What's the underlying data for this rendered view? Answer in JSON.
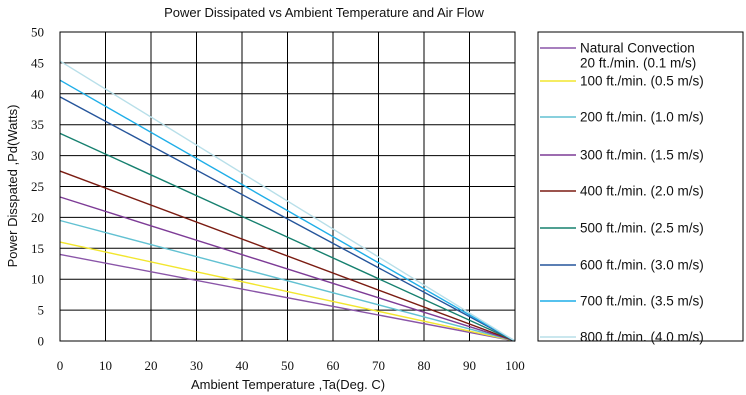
{
  "chart_data": {
    "type": "line",
    "title": "Power Dissipated vs Ambient Temperature and Air Flow",
    "xlabel": "Ambient Temperature ,Ta(Deg. C)",
    "ylabel": "Power Disspated ,Pd(Watts)",
    "xlim": [
      0,
      100
    ],
    "ylim": [
      0,
      50
    ],
    "x_ticks": [
      "0",
      "10",
      "20",
      "30",
      "40",
      "50",
      "60",
      "70",
      "80",
      "90",
      "100"
    ],
    "y_ticks": [
      "0",
      "5",
      "10",
      "15",
      "20",
      "25",
      "30",
      "35",
      "40",
      "45",
      "50"
    ],
    "grid": true,
    "legend_position": "right",
    "series": [
      {
        "name": "Natural Convection 20 ft./min. (0.1 m/s)",
        "label_lines": [
          "Natural Convection",
          "20 ft./min. (0.1 m/s)"
        ],
        "color": "#8a55a8",
        "x": [
          0,
          100
        ],
        "y": [
          14.0,
          0
        ]
      },
      {
        "name": "100 ft./min. (0.5 m/s)",
        "color": "#f2e62e",
        "x": [
          0,
          100
        ],
        "y": [
          16.0,
          0
        ]
      },
      {
        "name": "200 ft./min. (1.0 m/s)",
        "color": "#62c1d2",
        "x": [
          0,
          100
        ],
        "y": [
          19.5,
          0
        ]
      },
      {
        "name": "300 ft./min. (1.5 m/s)",
        "color": "#7d3b96",
        "x": [
          0,
          100
        ],
        "y": [
          23.3,
          0
        ]
      },
      {
        "name": "400 ft./min. (2.0 m/s)",
        "color": "#7b1c12",
        "x": [
          0,
          100
        ],
        "y": [
          27.5,
          0
        ]
      },
      {
        "name": "500 ft./min. (2.5 m/s)",
        "color": "#16806f",
        "x": [
          0,
          100
        ],
        "y": [
          33.6,
          0
        ]
      },
      {
        "name": "600 ft./min. (3.0 m/s)",
        "color": "#25559b",
        "x": [
          0,
          100
        ],
        "y": [
          39.5,
          0
        ]
      },
      {
        "name": "700 ft./min. (3.5 m/s)",
        "color": "#1faee8",
        "x": [
          0,
          100
        ],
        "y": [
          42.2,
          0
        ]
      },
      {
        "name": "800 ft./min. (4.0 m/s)",
        "color": "#b8dfe9",
        "x": [
          0,
          100
        ],
        "y": [
          45.3,
          0
        ]
      }
    ]
  }
}
